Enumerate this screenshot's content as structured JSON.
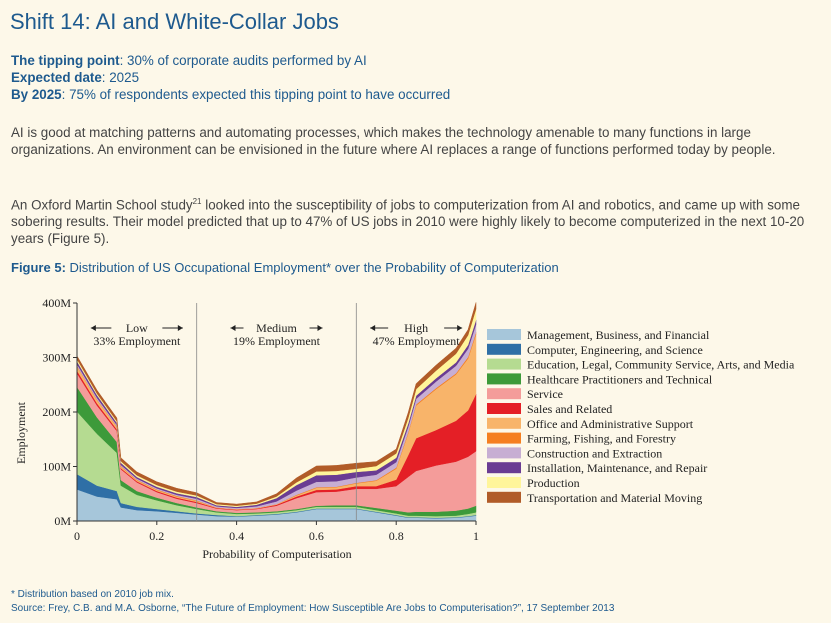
{
  "heading": {
    "title": "Shift 14: AI and White-Collar Jobs",
    "tipping_label": "The tipping point",
    "tipping_value": ": 30% of corporate audits performed by AI",
    "expected_label": "Expected date",
    "expected_value": ": 2025",
    "by_label": "By 2025",
    "by_value": ": 75% of respondents expected this tipping point to have occurred"
  },
  "body": {
    "paragraph1": "AI is good at matching patterns and automating processes, which makes the technology amenable to many functions in large organizations. An environment can be envisioned in the future where AI replaces a range of functions performed today by people.",
    "paragraph2_a": "An Oxford Martin School study",
    "paragraph2_sup": "21",
    "paragraph2_b": " looked into the susceptibility of jobs to computerization from AI and robotics, and came up with some sobering results. Their model predicted that up to 47% of US jobs in 2010 were highly likely to become computerized in the next 10-20 years (Figure 5)."
  },
  "figure": {
    "label": "Figure 5:",
    "caption": " Distribution of US Occupational Employment* over the Probability of Computerization"
  },
  "footer": {
    "note": "* Distribution based on 2010 job mix.",
    "source": "Source: Frey, C.B. and M.A. Osborne, “The Future of Employment: How Susceptible Are Jobs to Computerisation?”, 17 September 2013"
  },
  "chart_data": {
    "type": "area",
    "stacked": true,
    "xlabel": "Probability of Computerisation",
    "ylabel": "Employment",
    "xlim": [
      0,
      1
    ],
    "ylim": [
      0,
      400
    ],
    "x_ticks": [
      "0",
      "0.2",
      "0.4",
      "0.6",
      "0.8",
      "1"
    ],
    "y_ticks": [
      "0M",
      "100M",
      "200M",
      "300M",
      "400M"
    ],
    "zones": [
      {
        "name": "Low",
        "share": "33% Employment",
        "from": 0,
        "to": 0.3
      },
      {
        "name": "Medium",
        "share": "19% Employment",
        "from": 0.3,
        "to": 0.7
      },
      {
        "name": "High",
        "share": "47% Employment",
        "from": 0.7,
        "to": 1
      }
    ],
    "x": [
      0,
      0.05,
      0.1,
      0.11,
      0.15,
      0.2,
      0.25,
      0.3,
      0.35,
      0.4,
      0.45,
      0.5,
      0.55,
      0.6,
      0.65,
      0.7,
      0.75,
      0.8,
      0.83,
      0.85,
      0.9,
      0.95,
      0.98,
      1.0
    ],
    "series": [
      {
        "name": "Management, Business, and Financial",
        "color": "#a6c6da",
        "values": [
          58,
          45,
          40,
          25,
          20,
          18,
          15,
          12,
          9,
          8,
          10,
          12,
          16,
          22,
          22,
          22,
          16,
          10,
          6,
          6,
          5,
          6,
          8,
          10
        ]
      },
      {
        "name": "Computer, Engineering, and Science",
        "color": "#2f6fa6",
        "values": [
          28,
          20,
          15,
          8,
          6,
          4,
          3,
          2,
          2,
          1,
          1,
          1,
          1,
          1,
          1,
          1,
          1,
          1,
          1,
          1,
          1,
          1,
          1,
          1
        ]
      },
      {
        "name": "Education, Legal, Community Service, Arts, and Media",
        "color": "#b5db91",
        "values": [
          115,
          95,
          70,
          32,
          22,
          16,
          11,
          8,
          5,
          4,
          3,
          3,
          3,
          3,
          3,
          3,
          3,
          3,
          3,
          3,
          3,
          3,
          4,
          5
        ]
      },
      {
        "name": "Healthcare Practitioners and Technical",
        "color": "#3d9a3a",
        "values": [
          45,
          30,
          20,
          10,
          7,
          5,
          4,
          3,
          2,
          2,
          2,
          2,
          2,
          2,
          3,
          3,
          4,
          5,
          6,
          7,
          8,
          9,
          10,
          12
        ]
      },
      {
        "name": "Service",
        "color": "#f49c9a",
        "values": [
          25,
          22,
          20,
          20,
          16,
          10,
          8,
          8,
          5,
          5,
          6,
          10,
          20,
          25,
          25,
          30,
          35,
          45,
          65,
          75,
          85,
          90,
          95,
          100
        ]
      },
      {
        "name": "Sales and Related",
        "color": "#e41f26",
        "values": [
          5,
          4,
          3,
          2,
          2,
          2,
          2,
          2,
          1,
          1,
          1,
          2,
          3,
          4,
          4,
          5,
          5,
          12,
          40,
          60,
          65,
          75,
          85,
          105
        ]
      },
      {
        "name": "Office and Administrative Support",
        "color": "#f8b46a",
        "values": [
          8,
          6,
          5,
          3,
          2,
          2,
          2,
          2,
          1,
          1,
          1,
          1,
          2,
          4,
          4,
          5,
          10,
          20,
          40,
          60,
          75,
          85,
          95,
          110
        ]
      },
      {
        "name": "Farming, Fishing, and Forestry",
        "color": "#f57f20",
        "values": [
          1,
          1,
          1,
          1,
          1,
          1,
          1,
          1,
          0,
          0,
          0,
          0,
          1,
          1,
          1,
          1,
          1,
          2,
          2,
          2,
          2,
          2,
          3,
          3
        ]
      },
      {
        "name": "Construction and Extraction",
        "color": "#c7aed3",
        "values": [
          3,
          3,
          2,
          2,
          2,
          2,
          2,
          3,
          2,
          2,
          3,
          5,
          8,
          10,
          10,
          10,
          10,
          10,
          10,
          10,
          12,
          14,
          15,
          15
        ]
      },
      {
        "name": "Installation, Maintenance, and Repair",
        "color": "#6a3c93",
        "values": [
          5,
          5,
          4,
          4,
          3,
          3,
          3,
          3,
          2,
          2,
          3,
          6,
          10,
          12,
          12,
          10,
          8,
          8,
          6,
          6,
          6,
          6,
          7,
          8
        ]
      },
      {
        "name": "Production",
        "color": "#fff59b",
        "values": [
          4,
          3,
          3,
          3,
          3,
          3,
          3,
          3,
          2,
          2,
          2,
          3,
          5,
          7,
          7,
          6,
          8,
          8,
          10,
          12,
          14,
          16,
          18,
          20
        ]
      },
      {
        "name": "Transportation and Material Moving",
        "color": "#b15c28",
        "values": [
          6,
          6,
          6,
          6,
          6,
          6,
          6,
          5,
          3,
          3,
          3,
          5,
          8,
          10,
          10,
          10,
          8,
          8,
          10,
          10,
          10,
          10,
          10,
          12
        ]
      }
    ]
  }
}
